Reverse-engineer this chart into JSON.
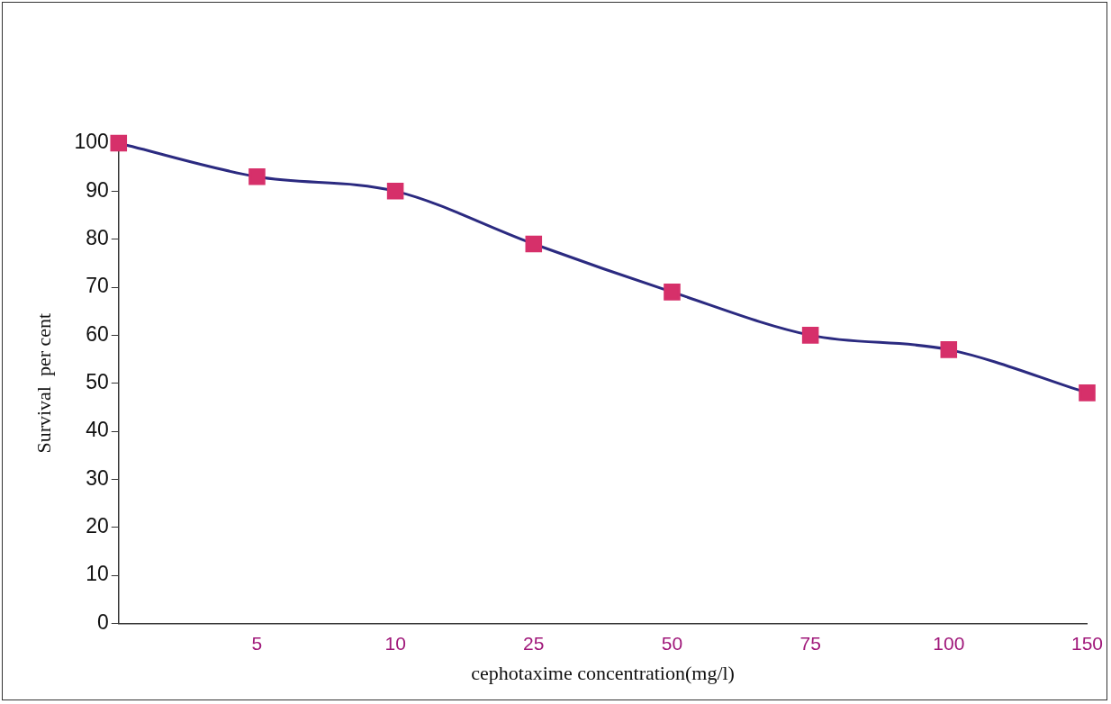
{
  "chart_data": {
    "type": "line",
    "xlabel": "cephotaxime concentration(mg/l)",
    "ylabel": "Survival  per cent",
    "categories": [
      null,
      "5",
      "10",
      "25",
      "50",
      "75",
      "100",
      "150"
    ],
    "series": [
      {
        "color": "#2b2a80",
        "colors": [
          "#d6306a",
          "#d6306a",
          "#d6306a",
          "#d6306a",
          "#d6306a",
          "#d6306a",
          "#d6306a",
          "#d6306a"
        ],
        "values": [
          100,
          93,
          90,
          79,
          69,
          60,
          57,
          48
        ]
      }
    ],
    "ylim": [
      0,
      100
    ],
    "yticks": [
      0,
      10,
      20,
      30,
      40,
      50,
      60,
      70,
      80,
      90,
      100
    ],
    "grid": false,
    "legend": false,
    "marker": "square",
    "line_style": "solid"
  }
}
